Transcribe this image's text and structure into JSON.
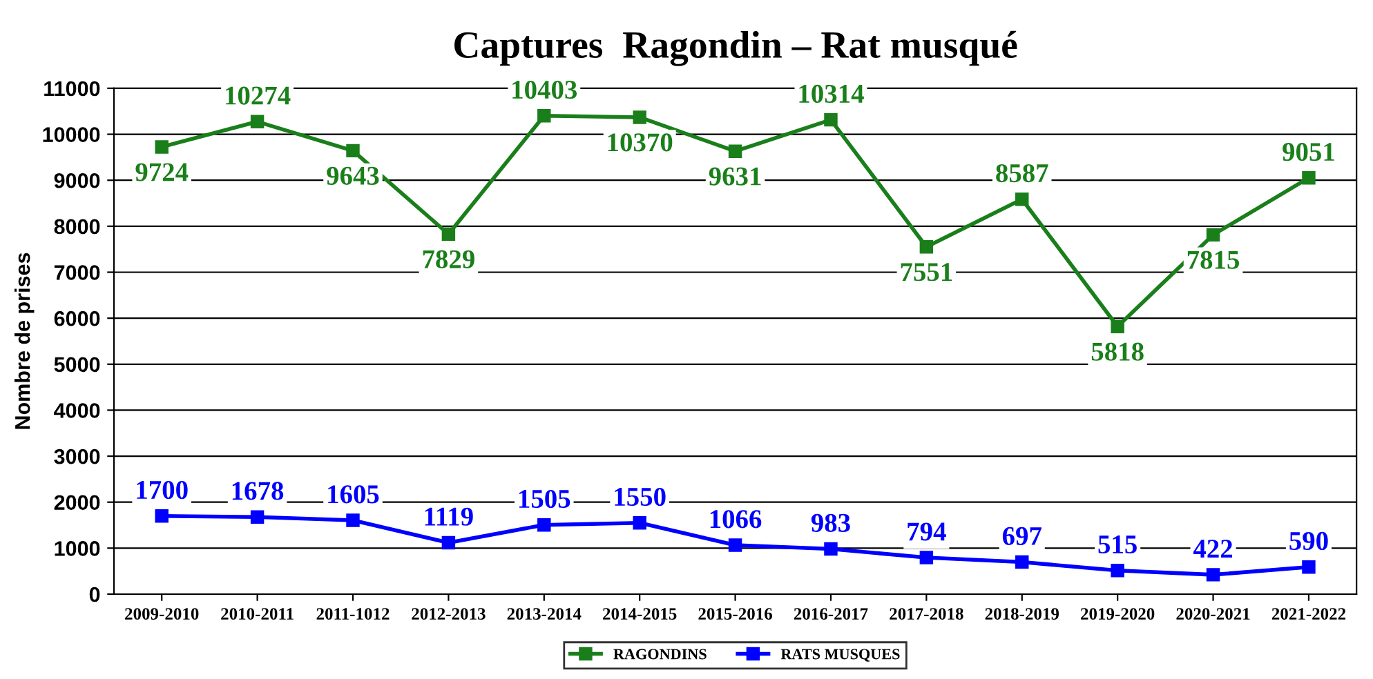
{
  "chart_data": {
    "type": "line",
    "title": "Captures  Ragondin – Rat musqué",
    "ylabel": "Nombre de prises",
    "categories": [
      "2009-2010",
      "2010-2011",
      "2011-1012",
      "2012-2013",
      "2013-2014",
      "2014-2015",
      "2015-2016",
      "2016-2017",
      "2017-2018",
      "2018-2019",
      "2019-2020",
      "2020-2021",
      "2021-2022"
    ],
    "series": [
      {
        "name": "RAGONDINS",
        "color": "#1a7f1a",
        "values": [
          9724,
          10274,
          9643,
          7829,
          10403,
          10370,
          9631,
          10314,
          7551,
          8587,
          5818,
          7815,
          9051
        ]
      },
      {
        "name": "RATS MUSQUES",
        "color": "#0000ff",
        "values": [
          1700,
          1678,
          1605,
          1119,
          1505,
          1550,
          1066,
          983,
          794,
          697,
          515,
          422,
          590
        ]
      }
    ],
    "ylim": [
      0,
      11000
    ],
    "yticks": [
      0,
      1000,
      2000,
      3000,
      4000,
      5000,
      6000,
      7000,
      8000,
      9000,
      10000,
      11000
    ],
    "grid": "y",
    "legend": "bottom",
    "marker": "square",
    "line_style": "solid",
    "data_labels": true
  }
}
